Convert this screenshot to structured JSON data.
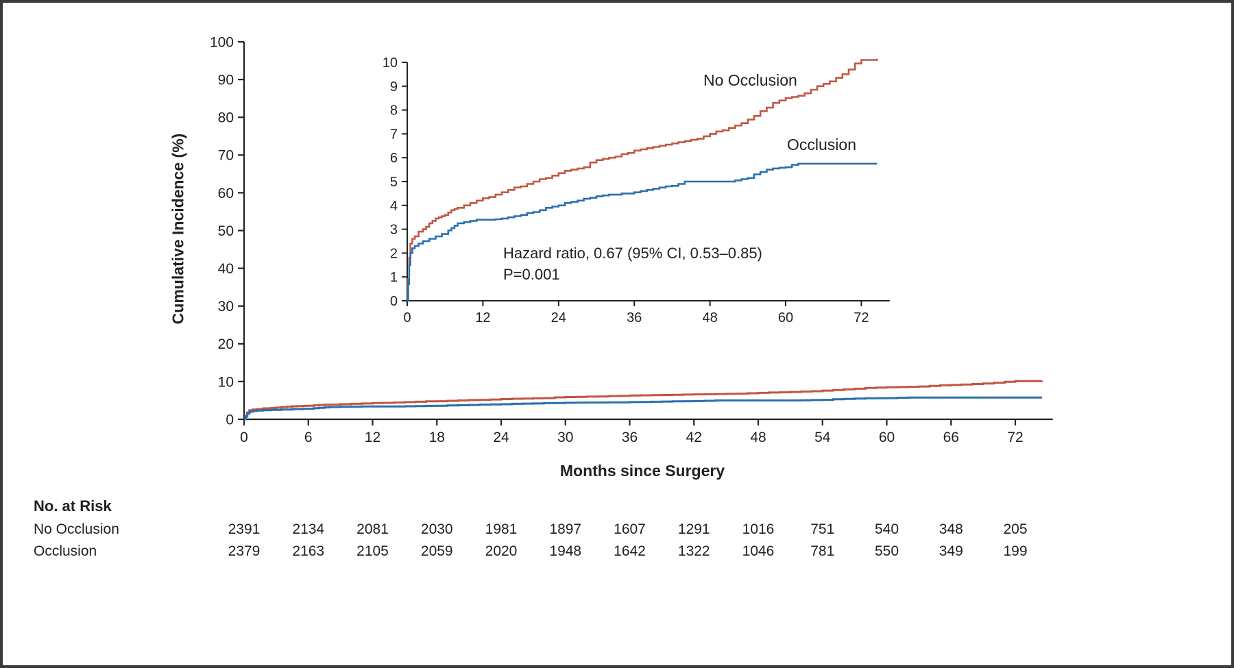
{
  "style": {
    "ink": "#222222",
    "background": "#ffffff",
    "red": "#c15744",
    "blue": "#2c6fad"
  },
  "chart_data": {
    "type": "line",
    "subtype": "step-cumulative-incidence",
    "title": "",
    "xlabel": "Months since Surgery",
    "ylabel": "Cumulative Incidence (%)",
    "grid": false,
    "main_axis": {
      "xlim": [
        0,
        75.5
      ],
      "ylim": [
        0,
        100
      ],
      "xticks": [
        0,
        6,
        12,
        18,
        24,
        30,
        36,
        42,
        48,
        54,
        60,
        66,
        72
      ],
      "yticks": [
        0,
        10,
        20,
        30,
        40,
        50,
        60,
        70,
        80,
        90,
        100
      ]
    },
    "inset_axis": {
      "xlim": [
        0,
        76.5
      ],
      "ylim": [
        0,
        10
      ],
      "xticks": [
        0,
        12,
        24,
        36,
        48,
        60,
        72
      ],
      "yticks": [
        0,
        1,
        2,
        3,
        4,
        5,
        6,
        7,
        8,
        9,
        10
      ]
    },
    "annotations": [
      "Hazard ratio, 0.67 (95% CI, 0.53–0.85)",
      "P=0.001"
    ],
    "series": [
      {
        "name": "No Occlusion",
        "color": "#c15744",
        "points": [
          [
            0,
            0
          ],
          [
            0.15,
            0.9
          ],
          [
            0.3,
            1.8
          ],
          [
            0.5,
            2.4
          ],
          [
            0.8,
            2.6
          ],
          [
            1.2,
            2.7
          ],
          [
            1.8,
            2.9
          ],
          [
            2.5,
            3.0
          ],
          [
            3,
            3.1
          ],
          [
            3.5,
            3.25
          ],
          [
            4,
            3.35
          ],
          [
            4.5,
            3.45
          ],
          [
            5,
            3.5
          ],
          [
            5.5,
            3.55
          ],
          [
            6,
            3.6
          ],
          [
            6.5,
            3.7
          ],
          [
            7,
            3.8
          ],
          [
            7.5,
            3.85
          ],
          [
            8,
            3.9
          ],
          [
            9,
            4.0
          ],
          [
            10,
            4.1
          ],
          [
            11,
            4.2
          ],
          [
            12,
            4.3
          ],
          [
            13,
            4.35
          ],
          [
            14,
            4.45
          ],
          [
            15,
            4.55
          ],
          [
            16,
            4.65
          ],
          [
            17,
            4.75
          ],
          [
            18,
            4.8
          ],
          [
            19,
            4.9
          ],
          [
            20,
            5.0
          ],
          [
            21,
            5.1
          ],
          [
            22,
            5.15
          ],
          [
            23,
            5.25
          ],
          [
            24,
            5.35
          ],
          [
            25,
            5.45
          ],
          [
            26,
            5.5
          ],
          [
            27,
            5.55
          ],
          [
            28,
            5.6
          ],
          [
            29,
            5.8
          ],
          [
            30,
            5.9
          ],
          [
            31,
            5.95
          ],
          [
            32,
            6.0
          ],
          [
            33,
            6.05
          ],
          [
            34,
            6.15
          ],
          [
            35,
            6.2
          ],
          [
            36,
            6.3
          ],
          [
            37,
            6.35
          ],
          [
            38,
            6.4
          ],
          [
            39,
            6.45
          ],
          [
            40,
            6.5
          ],
          [
            41,
            6.55
          ],
          [
            42,
            6.6
          ],
          [
            43,
            6.65
          ],
          [
            44,
            6.7
          ],
          [
            45,
            6.75
          ],
          [
            46,
            6.8
          ],
          [
            47,
            6.9
          ],
          [
            48,
            7.0
          ],
          [
            49,
            7.1
          ],
          [
            50,
            7.15
          ],
          [
            51,
            7.25
          ],
          [
            52,
            7.35
          ],
          [
            53,
            7.45
          ],
          [
            54,
            7.6
          ],
          [
            55,
            7.75
          ],
          [
            56,
            7.95
          ],
          [
            57,
            8.1
          ],
          [
            58,
            8.3
          ],
          [
            59,
            8.4
          ],
          [
            60,
            8.5
          ],
          [
            61,
            8.55
          ],
          [
            62,
            8.6
          ],
          [
            63,
            8.7
          ],
          [
            64,
            8.85
          ],
          [
            65,
            9.0
          ],
          [
            66,
            9.1
          ],
          [
            67,
            9.2
          ],
          [
            68,
            9.35
          ],
          [
            69,
            9.5
          ],
          [
            70,
            9.7
          ],
          [
            71,
            9.95
          ],
          [
            72,
            10.1
          ],
          [
            74.5,
            10.15
          ]
        ]
      },
      {
        "name": "Occlusion",
        "color": "#2c6fad",
        "points": [
          [
            0,
            0
          ],
          [
            0.15,
            0.7
          ],
          [
            0.3,
            1.5
          ],
          [
            0.5,
            2.0
          ],
          [
            0.8,
            2.2
          ],
          [
            1.2,
            2.3
          ],
          [
            1.8,
            2.4
          ],
          [
            2.5,
            2.5
          ],
          [
            3.5,
            2.6
          ],
          [
            4.5,
            2.7
          ],
          [
            5.5,
            2.8
          ],
          [
            6.5,
            2.95
          ],
          [
            7,
            3.05
          ],
          [
            7.5,
            3.15
          ],
          [
            8,
            3.25
          ],
          [
            9,
            3.3
          ],
          [
            10,
            3.35
          ],
          [
            11,
            3.4
          ],
          [
            13,
            3.4
          ],
          [
            14,
            3.42
          ],
          [
            15,
            3.45
          ],
          [
            16,
            3.5
          ],
          [
            17,
            3.55
          ],
          [
            18,
            3.6
          ],
          [
            19,
            3.68
          ],
          [
            20,
            3.72
          ],
          [
            21,
            3.8
          ],
          [
            22,
            3.9
          ],
          [
            23,
            3.95
          ],
          [
            24,
            4.0
          ],
          [
            25,
            4.1
          ],
          [
            26,
            4.15
          ],
          [
            27,
            4.2
          ],
          [
            28,
            4.28
          ],
          [
            29,
            4.32
          ],
          [
            30,
            4.38
          ],
          [
            31,
            4.42
          ],
          [
            32,
            4.45
          ],
          [
            34,
            4.5
          ],
          [
            36,
            4.55
          ],
          [
            37,
            4.6
          ],
          [
            38,
            4.65
          ],
          [
            39,
            4.7
          ],
          [
            40,
            4.75
          ],
          [
            41,
            4.8
          ],
          [
            42,
            4.82
          ],
          [
            43,
            4.9
          ],
          [
            44,
            5.0
          ],
          [
            48,
            5.0
          ],
          [
            52,
            5.05
          ],
          [
            53,
            5.1
          ],
          [
            54,
            5.15
          ],
          [
            55,
            5.3
          ],
          [
            56,
            5.4
          ],
          [
            57,
            5.5
          ],
          [
            58,
            5.55
          ],
          [
            59,
            5.58
          ],
          [
            60,
            5.6
          ],
          [
            61,
            5.7
          ],
          [
            62,
            5.75
          ],
          [
            74.5,
            5.75
          ]
        ]
      }
    ]
  },
  "risk_table": {
    "title": "No. at Risk",
    "months": [
      0,
      6,
      12,
      18,
      24,
      30,
      36,
      42,
      48,
      54,
      60,
      66,
      72
    ],
    "rows": [
      {
        "label": "No Occlusion",
        "counts": [
          2391,
          2134,
          2081,
          2030,
          1981,
          1897,
          1607,
          1291,
          1016,
          751,
          540,
          348,
          205
        ]
      },
      {
        "label": "Occlusion",
        "counts": [
          2379,
          2163,
          2105,
          2059,
          2020,
          1948,
          1642,
          1322,
          1046,
          781,
          550,
          349,
          199
        ]
      }
    ]
  }
}
